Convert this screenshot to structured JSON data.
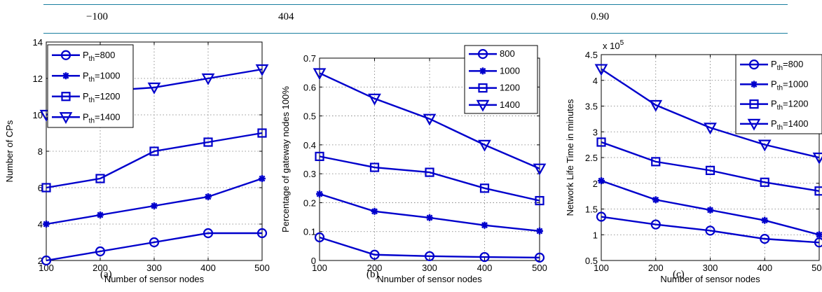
{
  "header": {
    "c1": "−100",
    "c2": "404",
    "c3": "0.90"
  },
  "chart_data": [
    {
      "id": "a",
      "type": "line",
      "caption": "(a)",
      "xlabel": "Number of sensor nodes",
      "ylabel": "Number of CPs",
      "multiplier": "",
      "x": [
        100,
        200,
        300,
        400,
        500
      ],
      "xlim": [
        100,
        500
      ],
      "ylim": [
        2,
        14
      ],
      "xticks": [
        100,
        200,
        300,
        400,
        500
      ],
      "yticks": [
        2,
        4,
        6,
        8,
        10,
        12,
        14
      ],
      "ytick_labels": [
        "2",
        "4",
        "6",
        "8",
        "10",
        "12",
        "14"
      ],
      "grid": true,
      "legend_position": "top-left",
      "color": "#0000cc",
      "series": [
        {
          "name": "P_th=800",
          "marker": "circle",
          "values": [
            2,
            2.5,
            3,
            3.5,
            3.5
          ]
        },
        {
          "name": "P_th=1000",
          "marker": "asterisk",
          "values": [
            4,
            4.5,
            5,
            5.5,
            6.5
          ]
        },
        {
          "name": "P_th=1200",
          "marker": "square",
          "values": [
            6,
            6.5,
            8,
            8.5,
            9
          ]
        },
        {
          "name": "P_th=1400",
          "marker": "triangle-down",
          "values": [
            10,
            11.3,
            11.5,
            12,
            12.5
          ]
        }
      ]
    },
    {
      "id": "b",
      "type": "line",
      "caption": "(b)",
      "xlabel": "Nnumber of sensor nodes",
      "ylabel": "Percentage of gateway nodes 100%",
      "multiplier": "",
      "x": [
        100,
        200,
        300,
        400,
        500
      ],
      "xlim": [
        100,
        500
      ],
      "ylim": [
        0,
        0.7
      ],
      "xticks": [
        100,
        200,
        300,
        400,
        500
      ],
      "yticks": [
        0,
        0.1,
        0.2,
        0.3,
        0.4,
        0.5,
        0.6,
        0.7
      ],
      "ytick_labels": [
        "0",
        "0.1",
        "0.2",
        "0.3",
        "0.4",
        "0.5",
        "0.6",
        "0.7"
      ],
      "grid": true,
      "legend_position": "top-right",
      "color": "#0000cc",
      "series": [
        {
          "name": "800",
          "marker": "circle",
          "values": [
            0.08,
            0.02,
            0.015,
            0.012,
            0.01
          ]
        },
        {
          "name": "1000",
          "marker": "asterisk",
          "values": [
            0.23,
            0.17,
            0.148,
            0.122,
            0.102
          ]
        },
        {
          "name": "1200",
          "marker": "square",
          "values": [
            0.36,
            0.322,
            0.305,
            0.25,
            0.207
          ]
        },
        {
          "name": "1400",
          "marker": "triangle-down",
          "values": [
            0.648,
            0.56,
            0.49,
            0.4,
            0.318
          ]
        }
      ]
    },
    {
      "id": "c",
      "type": "line",
      "caption": "(c)",
      "xlabel": "Number of sensor nodes",
      "ylabel": "Network Life Time in minutes",
      "multiplier": "x 10",
      "multiplier_exp": "5",
      "x": [
        100,
        200,
        300,
        400,
        500
      ],
      "xlim": [
        100,
        500
      ],
      "ylim": [
        0.5,
        4.5
      ],
      "xticks": [
        100,
        200,
        300,
        400,
        500
      ],
      "yticks": [
        0.5,
        1,
        1.5,
        2,
        2.5,
        3,
        3.5,
        4,
        4.5
      ],
      "ytick_labels": [
        "0.5",
        "1",
        "1.5",
        "2",
        "2.5",
        "3",
        "3.5",
        "4",
        "4.5"
      ],
      "grid": true,
      "legend_position": "top-right",
      "color": "#0000cc",
      "series": [
        {
          "name": "P_th=800",
          "marker": "circle",
          "values": [
            1.35,
            1.2,
            1.08,
            0.92,
            0.85
          ]
        },
        {
          "name": "P_th=1000",
          "marker": "asterisk",
          "values": [
            2.05,
            1.68,
            1.48,
            1.28,
            1.0
          ]
        },
        {
          "name": "P_th=1200",
          "marker": "square",
          "values": [
            2.8,
            2.42,
            2.25,
            2.02,
            1.85
          ]
        },
        {
          "name": "P_th=1400",
          "marker": "triangle-down",
          "values": [
            4.22,
            3.52,
            3.08,
            2.75,
            2.5
          ]
        }
      ]
    }
  ]
}
